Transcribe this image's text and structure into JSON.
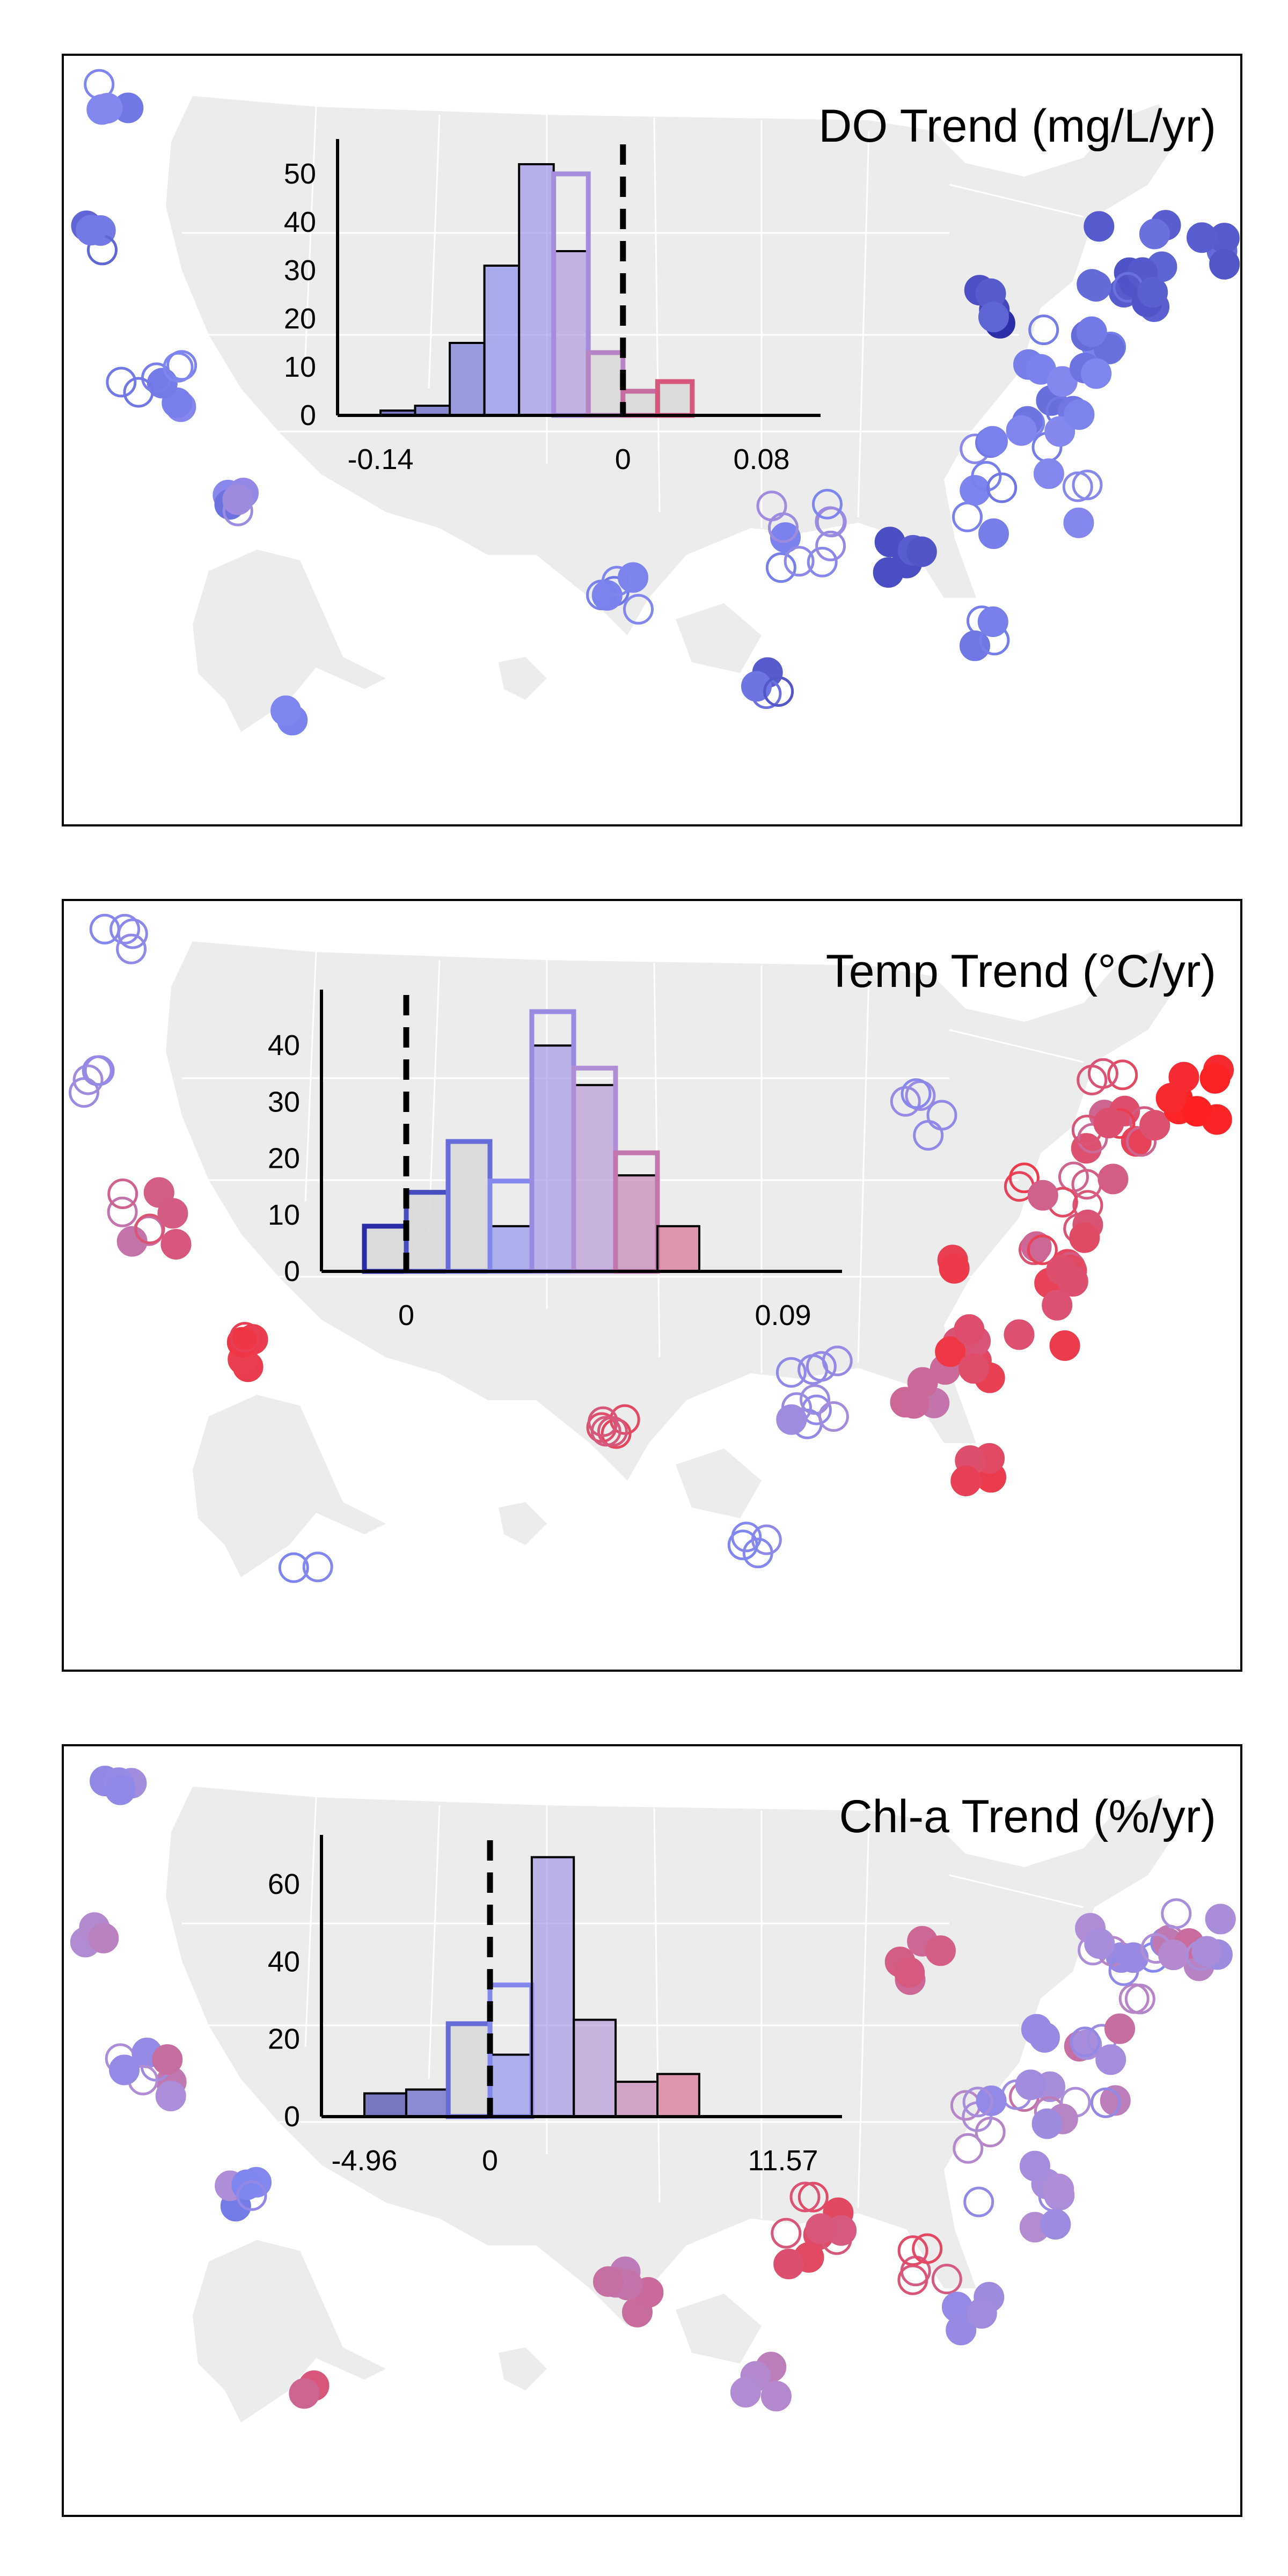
{
  "colors": {
    "negative": "#1b1b9a",
    "neutral_blue": "#7f86f0",
    "neutral_purple": "#b08ed6",
    "positive": "#ff2020",
    "land": "#ececec",
    "histogram_bar": "#d9d9d9"
  },
  "chart_data": [
    {
      "type": "bar",
      "title": "DO Trend (mg/L/yr)",
      "subtype": "histogram over map of sampling sites",
      "x_tick_labels": [
        "-0.14",
        "0",
        "0.08"
      ],
      "xlim": [
        -0.14,
        0.08
      ],
      "ylim": [
        0,
        55
      ],
      "y_ticks": [
        0,
        10,
        20,
        30,
        40,
        50
      ],
      "reference_line_at": 0,
      "bins": [
        {
          "start": -0.14,
          "end": -0.12,
          "count": 1
        },
        {
          "start": -0.12,
          "end": -0.1,
          "count": 2
        },
        {
          "start": -0.1,
          "end": -0.08,
          "count": 15
        },
        {
          "start": -0.08,
          "end": -0.06,
          "count": 31
        },
        {
          "start": -0.06,
          "end": -0.04,
          "count": 52
        },
        {
          "start": -0.04,
          "end": -0.02,
          "count": 50
        },
        {
          "start": -0.02,
          "end": 0.0,
          "count": 13
        },
        {
          "start": 0.0,
          "end": 0.02,
          "count": 5
        },
        {
          "start": 0.02,
          "end": 0.04,
          "count": 7
        }
      ],
      "significant_counts": [
        1,
        2,
        15,
        31,
        52,
        34,
        0,
        0,
        0
      ]
    },
    {
      "type": "bar",
      "title": "Temp Trend (°C/yr)",
      "subtype": "histogram over map of sampling sites",
      "x_tick_labels": [
        "0",
        "0.09"
      ],
      "xlim": [
        -0.01,
        0.09
      ],
      "ylim": [
        0,
        48
      ],
      "y_ticks": [
        0,
        10,
        20,
        30,
        40
      ],
      "reference_line_at": 0,
      "bins": [
        {
          "start": -0.01,
          "end": 0.0,
          "count": 8
        },
        {
          "start": 0.0,
          "end": 0.01,
          "count": 14
        },
        {
          "start": 0.01,
          "end": 0.02,
          "count": 23
        },
        {
          "start": 0.02,
          "end": 0.03,
          "count": 16
        },
        {
          "start": 0.03,
          "end": 0.04,
          "count": 46
        },
        {
          "start": 0.04,
          "end": 0.05,
          "count": 36
        },
        {
          "start": 0.05,
          "end": 0.06,
          "count": 21
        },
        {
          "start": 0.06,
          "end": 0.07,
          "count": 8
        }
      ],
      "significant_counts": [
        0,
        0,
        0,
        8,
        40,
        33,
        17,
        8
      ]
    },
    {
      "type": "bar",
      "title": "Chl-a Trend (%/yr)",
      "subtype": "histogram over map of sampling sites",
      "x_tick_labels": [
        "-4.96",
        "0",
        "11.57"
      ],
      "xlim": [
        -4.96,
        11.57
      ],
      "ylim": [
        0,
        70
      ],
      "y_ticks": [
        0,
        20,
        40,
        60
      ],
      "reference_line_at": 0,
      "bins": [
        {
          "start": -4.96,
          "end": -3.31,
          "count": 6
        },
        {
          "start": -3.31,
          "end": -1.65,
          "count": 7
        },
        {
          "start": -1.65,
          "end": 0.0,
          "count": 24
        },
        {
          "start": 0.0,
          "end": 1.65,
          "count": 34
        },
        {
          "start": 1.65,
          "end": 3.31,
          "count": 67
        },
        {
          "start": 3.31,
          "end": 4.96,
          "count": 25
        },
        {
          "start": 4.96,
          "end": 6.61,
          "count": 9
        },
        {
          "start": 6.61,
          "end": 8.26,
          "count": 11
        }
      ],
      "significant_counts": [
        6,
        7,
        0,
        16,
        67,
        25,
        9,
        11
      ]
    }
  ]
}
